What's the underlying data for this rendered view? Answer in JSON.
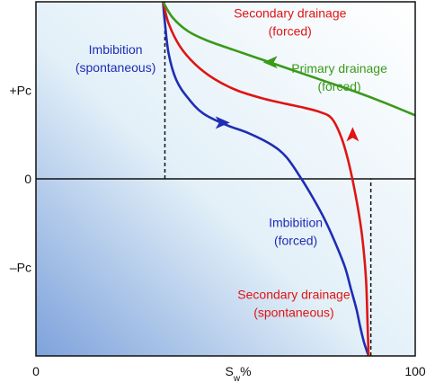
{
  "chart_data": {
    "type": "line",
    "title": "",
    "xlabel": "Sw%",
    "xlabel_main": "S",
    "xlabel_sub": "w",
    "xlabel_suffix": "%",
    "ylabel": "",
    "xlim": [
      0,
      100
    ],
    "ylim": [
      -1.7,
      1.7
    ],
    "x_ticks": [
      {
        "value": 0,
        "label": "0"
      },
      {
        "value": 100,
        "label": "100"
      }
    ],
    "y_ticks": [
      {
        "value": 0.85,
        "label": "+Pc"
      },
      {
        "value": 0,
        "label": "0"
      },
      {
        "value": -0.85,
        "label": "–Pc"
      }
    ],
    "grid": false,
    "legend": "none",
    "background_gradient": [
      "#7ea2dc",
      "#e3f0f8",
      "#ffffff"
    ],
    "series": [
      {
        "color": "#1f2db4",
        "x": [
          33.5,
          34,
          35,
          37,
          40,
          44,
          50,
          56,
          62,
          66,
          70,
          73,
          76,
          79,
          81.5,
          83,
          84.5,
          85.5,
          86.5,
          87.7
        ],
        "y": [
          1.7,
          1.5,
          1.2,
          0.95,
          0.78,
          0.63,
          0.52,
          0.44,
          0.33,
          0.21,
          0.0,
          -0.18,
          -0.38,
          -0.62,
          -0.85,
          -1.05,
          -1.25,
          -1.42,
          -1.57,
          -1.7
        ]
      },
      {
        "color": "#e01414",
        "x": [
          33.5,
          35,
          38,
          42,
          47,
          53,
          60,
          66,
          71,
          75,
          78,
          80.5,
          82.5,
          84.5,
          86,
          87,
          87.4,
          87.7
        ],
        "y": [
          1.7,
          1.49,
          1.27,
          1.1,
          0.96,
          0.85,
          0.77,
          0.72,
          0.68,
          0.64,
          0.58,
          0.4,
          0.15,
          -0.2,
          -0.55,
          -0.95,
          -1.35,
          -1.7
        ]
      },
      {
        "color": "#3a9a1a",
        "x": [
          33.5,
          36,
          40,
          45,
          52,
          60,
          68,
          76,
          84,
          92,
          100
        ],
        "y": [
          1.7,
          1.55,
          1.42,
          1.33,
          1.24,
          1.14,
          1.04,
          0.94,
          0.84,
          0.73,
          0.61
        ]
      }
    ],
    "arrows": [
      {
        "series": 0,
        "x": 49,
        "y": 0.54,
        "direction": "right",
        "color": "#1f2db4"
      },
      {
        "series": 1,
        "x": 83.5,
        "y": 0.42,
        "direction": "up",
        "color": "#e01414"
      },
      {
        "series": 2,
        "x": 62,
        "y": 1.12,
        "direction": "left",
        "color": "#3a9a1a"
      }
    ],
    "reference_lines": [
      {
        "x": 34,
        "y_from": 0,
        "y_to": 1.7
      },
      {
        "x": 88.3,
        "y_from": -1.7,
        "y_to": 0
      }
    ],
    "annotations": [
      {
        "lines": [
          "Imbibition",
          "(spontaneous)"
        ],
        "x": 21,
        "y": 1.2,
        "color": "#1f2db4"
      },
      {
        "lines": [
          "Secondary drainage",
          "(forced)"
        ],
        "x": 67,
        "y": 1.55,
        "color": "#e01414"
      },
      {
        "lines": [
          "Primary drainage",
          "(forced)"
        ],
        "x": 80,
        "y": 1.02,
        "color": "#3a9a1a"
      },
      {
        "lines": [
          "Imbibition",
          "(forced)"
        ],
        "x": 68.5,
        "y": -0.46,
        "color": "#1f2db4"
      },
      {
        "lines": [
          "Secondary drainage",
          "(spontaneous)"
        ],
        "x": 68,
        "y": -1.15,
        "color": "#e01414"
      }
    ]
  }
}
